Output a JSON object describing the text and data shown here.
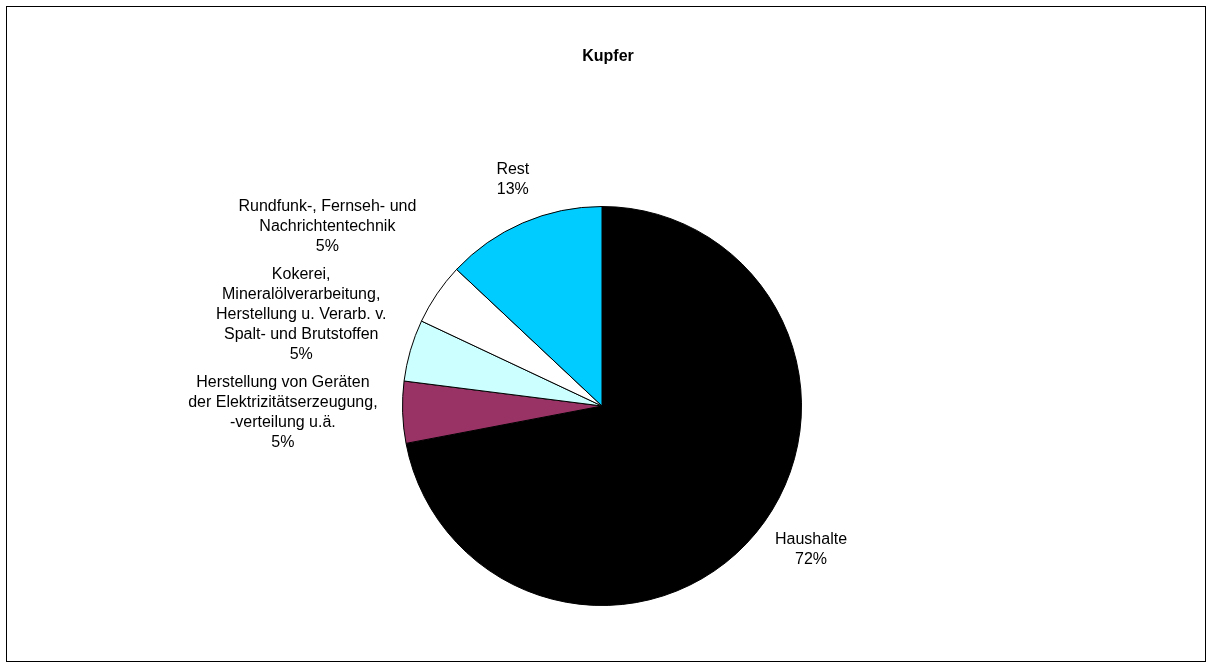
{
  "chart_data": {
    "type": "pie",
    "title": "Kupfer",
    "categories": [
      "Haushalte",
      "Herstellung von Geräten der Elektrizitätserzeugung, -verteilung u.ä.",
      "Kokerei, Mineralölverarbeitung, Herstellung u. Verarb. v. Spalt- und Brutstoffen",
      "Rundfunk-, Fernseh- und Nachrichtentechnik",
      "Rest"
    ],
    "values": [
      72,
      5,
      5,
      5,
      13
    ],
    "value_labels": [
      "72%",
      "5%",
      "5%",
      "5%",
      "13%"
    ],
    "colors": [
      "#000000",
      "#993366",
      "#ccffff",
      "#ffffff",
      "#00ccff"
    ],
    "legend": false
  }
}
